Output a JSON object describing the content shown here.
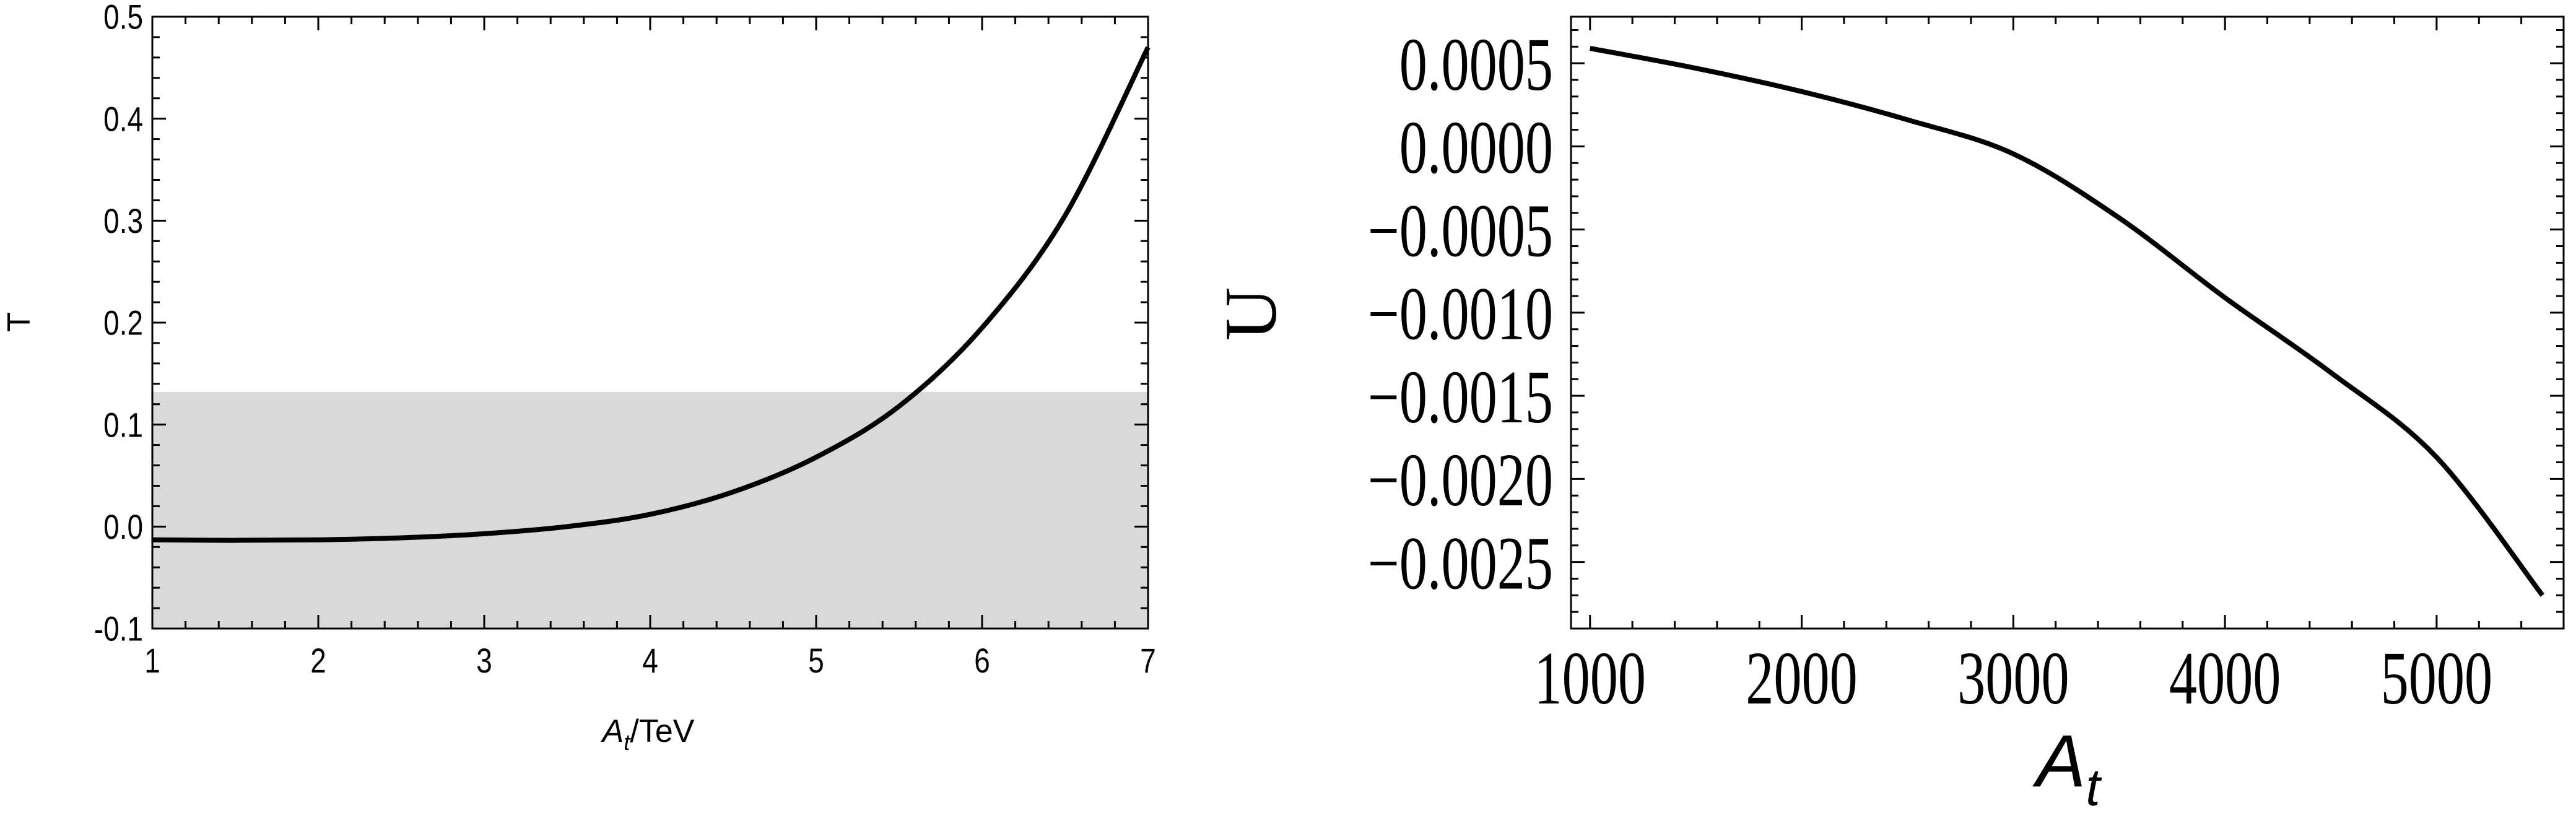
{
  "chart_data": [
    {
      "type": "line",
      "title": "",
      "xlabel": "A_t/TeV",
      "xlabel_parts": {
        "main": "A",
        "sub": "t",
        "rest": "/TeV"
      },
      "ylabel": "T",
      "xlim": [
        1,
        7
      ],
      "ylim": [
        -0.1,
        0.5
      ],
      "xticks": [
        1,
        2,
        3,
        4,
        5,
        6,
        7
      ],
      "xtick_labels": [
        "1",
        "2",
        "3",
        "4",
        "5",
        "6",
        "7"
      ],
      "yticks": [
        -0.1,
        0.0,
        0.1,
        0.2,
        0.3,
        0.4,
        0.5
      ],
      "ytick_labels": [
        "-0.1",
        "0.0",
        "0.1",
        "0.2",
        "0.3",
        "0.4",
        "0.5"
      ],
      "x_minor_step": 0.2,
      "y_minor_step": 0.02,
      "grid": false,
      "band": {
        "ymin": -0.1,
        "ymax": 0.132,
        "color": "#d9d9d9"
      },
      "series": [
        {
          "color": "#000000",
          "x": [
            1,
            1.5,
            2,
            2.5,
            3,
            3.5,
            4,
            4.5,
            5,
            5.5,
            6,
            6.5,
            7
          ],
          "y": [
            -0.013,
            -0.0135,
            -0.013,
            -0.011,
            -0.007,
            0.0,
            0.012,
            0.034,
            0.068,
            0.118,
            0.195,
            0.305,
            0.47
          ]
        }
      ]
    },
    {
      "type": "line",
      "title": "",
      "xlabel": "A_t",
      "xlabel_parts": {
        "main": "A",
        "sub": "t",
        "rest": ""
      },
      "ylabel": "U",
      "xlim": [
        910,
        5600
      ],
      "ylim": [
        -0.0029,
        0.00078
      ],
      "xticks": [
        1000,
        2000,
        3000,
        4000,
        5000
      ],
      "xtick_labels": [
        "1000",
        "2000",
        "3000",
        "4000",
        "5000"
      ],
      "yticks": [
        0.0005,
        0.0,
        -0.0005,
        -0.001,
        -0.0015,
        -0.002,
        -0.0025
      ],
      "ytick_labels": [
        "0.0005",
        "0.0000",
        "−0.0005",
        "−0.0010",
        "−0.0015",
        "−0.0020",
        "−0.0025"
      ],
      "x_minor_step": 200,
      "y_minor_step": 0.0001,
      "grid": false,
      "series": [
        {
          "color": "#000000",
          "x": [
            1000,
            1500,
            2000,
            2500,
            3000,
            3500,
            4000,
            4500,
            5000,
            5500
          ],
          "y": [
            0.00059,
            0.00047,
            0.00033,
            0.00016,
            -4.5e-05,
            -0.00043,
            -0.00091,
            -0.00136,
            -0.00187,
            -0.0027
          ]
        }
      ]
    }
  ]
}
